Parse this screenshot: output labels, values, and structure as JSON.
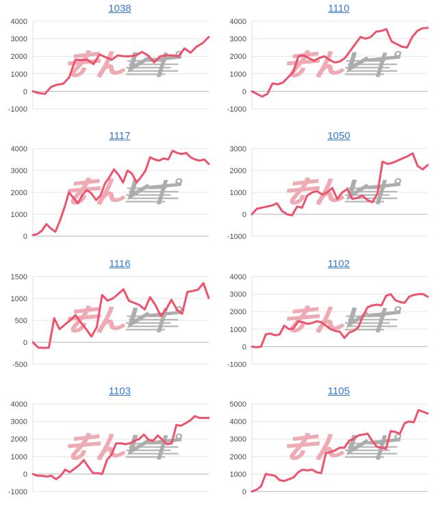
{
  "page": {
    "background": "#ffffff"
  },
  "style": {
    "line_color": "#f0506a",
    "link_color": "#3379d8",
    "grid_color": "#e4e4e4",
    "zero_line_color": "#b1b1b1",
    "axis_line_color": "#dedede",
    "label_color": "#4a4a4a",
    "watermark_pink": "#eda3ac",
    "watermark_gray": "#a5a5a5"
  },
  "watermark": {
    "text": "みんレポ"
  },
  "chart_data": [
    {
      "type": "line",
      "title": "1038",
      "xlabel": "",
      "ylabel": "",
      "ylim": [
        -1000,
        4000
      ],
      "ticks": [
        4000,
        3000,
        2000,
        1000,
        0,
        -1000
      ],
      "values": [
        0,
        -100,
        -150,
        250,
        380,
        430,
        800,
        1800,
        1780,
        1800,
        1550,
        2100,
        1950,
        1800,
        2050,
        2000,
        2000,
        2050,
        2250,
        2050,
        1650,
        2000,
        2050,
        2050,
        2000,
        2450,
        2200,
        2550,
        2750,
        3100
      ]
    },
    {
      "type": "line",
      "title": "1110",
      "xlabel": "",
      "ylabel": "",
      "ylim": [
        -1000,
        4000
      ],
      "ticks": [
        4000,
        3000,
        2000,
        1000,
        0,
        -1000
      ],
      "values": [
        0,
        -150,
        -300,
        -150,
        450,
        400,
        500,
        800,
        1100,
        2000,
        2050,
        1900,
        1750,
        1900,
        2000,
        1800,
        1650,
        1700,
        1900,
        2300,
        2700,
        3100,
        3000,
        3100,
        3400,
        3450,
        3550,
        2850,
        2700,
        2550,
        2500,
        3100,
        3450,
        3600,
        3620
      ]
    },
    {
      "type": "line",
      "title": "1117",
      "xlabel": "",
      "ylabel": "",
      "ylim": [
        0,
        4000
      ],
      "ticks": [
        4000,
        3000,
        2000,
        1000,
        0
      ],
      "values": [
        50,
        100,
        250,
        550,
        350,
        200,
        700,
        1300,
        2000,
        1750,
        1500,
        1900,
        2100,
        1950,
        1650,
        1850,
        2400,
        2700,
        3050,
        2800,
        2450,
        3000,
        2850,
        2450,
        2700,
        3000,
        3600,
        3500,
        3450,
        3550,
        3500,
        3900,
        3800,
        3750,
        3800,
        3600,
        3500,
        3450,
        3500,
        3300
      ]
    },
    {
      "type": "line",
      "title": "1050",
      "xlabel": "",
      "ylabel": "",
      "ylim": [
        -1000,
        3000
      ],
      "ticks": [
        3000,
        2000,
        1000,
        0,
        -1000
      ],
      "values": [
        0,
        250,
        300,
        350,
        400,
        500,
        150,
        0,
        -50,
        350,
        300,
        850,
        1000,
        1050,
        900,
        1000,
        1200,
        700,
        1000,
        1150,
        700,
        750,
        850,
        650,
        550,
        950,
        2400,
        2300,
        2350,
        2450,
        2550,
        2650,
        2780,
        2200,
        2050,
        2250
      ]
    },
    {
      "type": "line",
      "title": "1116",
      "xlabel": "",
      "ylabel": "",
      "ylim": [
        -500,
        1500
      ],
      "ticks": [
        1500,
        1000,
        500,
        0,
        -500
      ],
      "values": [
        0,
        -120,
        -130,
        -120,
        550,
        300,
        400,
        500,
        620,
        450,
        300,
        130,
        350,
        1080,
        950,
        1000,
        1100,
        1210,
        950,
        900,
        850,
        750,
        1030,
        850,
        600,
        750,
        970,
        750,
        650,
        1150,
        1170,
        1200,
        1350,
        1010
      ]
    },
    {
      "type": "line",
      "title": "1102",
      "xlabel": "",
      "ylabel": "",
      "ylim": [
        -1000,
        4000
      ],
      "ticks": [
        4000,
        3000,
        2000,
        1000,
        0,
        -1000
      ],
      "values": [
        0,
        -30,
        0,
        700,
        750,
        650,
        700,
        1200,
        1000,
        1050,
        1450,
        1400,
        1300,
        1350,
        1450,
        1400,
        1200,
        1000,
        900,
        850,
        500,
        800,
        900,
        1100,
        1750,
        2250,
        2350,
        2400,
        2350,
        2900,
        3000,
        2650,
        2550,
        2500,
        2850,
        2950,
        3000,
        3000,
        2850
      ]
    },
    {
      "type": "line",
      "title": "1103",
      "xlabel": "",
      "ylabel": "",
      "ylim": [
        -1000,
        4000
      ],
      "ticks": [
        4000,
        3000,
        2000,
        1000,
        0,
        -1000
      ],
      "values": [
        0,
        -100,
        -100,
        -150,
        -100,
        -300,
        -100,
        250,
        100,
        300,
        500,
        800,
        400,
        50,
        50,
        0,
        800,
        1100,
        1750,
        1750,
        1700,
        1750,
        1900,
        2000,
        2250,
        1950,
        1900,
        2200,
        1950,
        1700,
        1750,
        2800,
        2750,
        2900,
        3050,
        3300,
        3200,
        3200,
        3200
      ]
    },
    {
      "type": "line",
      "title": "1105",
      "xlabel": "",
      "ylabel": "",
      "ylim": [
        0,
        5000
      ],
      "ticks": [
        5000,
        4000,
        3000,
        2000,
        1000,
        0
      ],
      "values": [
        0,
        100,
        300,
        1000,
        950,
        900,
        650,
        600,
        700,
        800,
        1100,
        1250,
        1200,
        1250,
        1100,
        1050,
        2200,
        2250,
        2350,
        2500,
        2500,
        2900,
        3000,
        3200,
        3250,
        3300,
        2900,
        2550,
        2500,
        2450,
        3450,
        3400,
        3300,
        3900,
        4000,
        3950,
        4650,
        4550,
        4450
      ]
    }
  ]
}
